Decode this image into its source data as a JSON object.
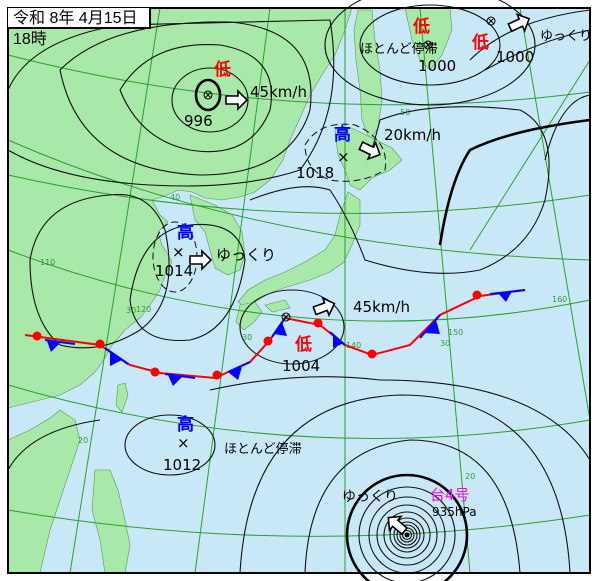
{
  "title": "令和 8年 4月15日18時",
  "colors": {
    "land": "#a8e8a8",
    "sea": "#c8e8f8",
    "grid": "#2ca02c",
    "low": "#ff0000",
    "high": "#0000ff",
    "typhoon": "#ff00ff",
    "warm_front": "#ff0000",
    "cold_front": "#0000ff"
  },
  "grid_labels": {
    "lat": [
      "50",
      "40",
      "30",
      "30",
      "20",
      "20",
      "30"
    ],
    "lon": [
      "110",
      "120",
      "140",
      "150",
      "160"
    ]
  },
  "systems": [
    {
      "type": "低",
      "pressure": "996",
      "motion": "45km/h",
      "symbol": "low-center-icon"
    },
    {
      "type": "高",
      "pressure": "1018",
      "motion": "20km/h",
      "symbol": "x-mark-icon"
    },
    {
      "type": "高",
      "pressure": "1014",
      "motion": "ゆっくり",
      "symbol": "x-mark-icon"
    },
    {
      "type": "低",
      "pressure": "1004",
      "motion": "45km/h",
      "symbol": "low-center-icon"
    },
    {
      "type": "高",
      "pressure": "1012",
      "motion": "ほとんど停滞",
      "symbol": "x-mark-icon"
    },
    {
      "type": "低",
      "pressure": "1000",
      "motion": "ほとんど停滞",
      "symbol": "low-center-icon"
    },
    {
      "type": "低",
      "pressure": "1000",
      "motion": "ゆっくり",
      "symbol": "low-center-icon"
    }
  ],
  "typhoon": {
    "name": "台4号",
    "pressure": "935hPa",
    "motion": "ゆっくり"
  }
}
